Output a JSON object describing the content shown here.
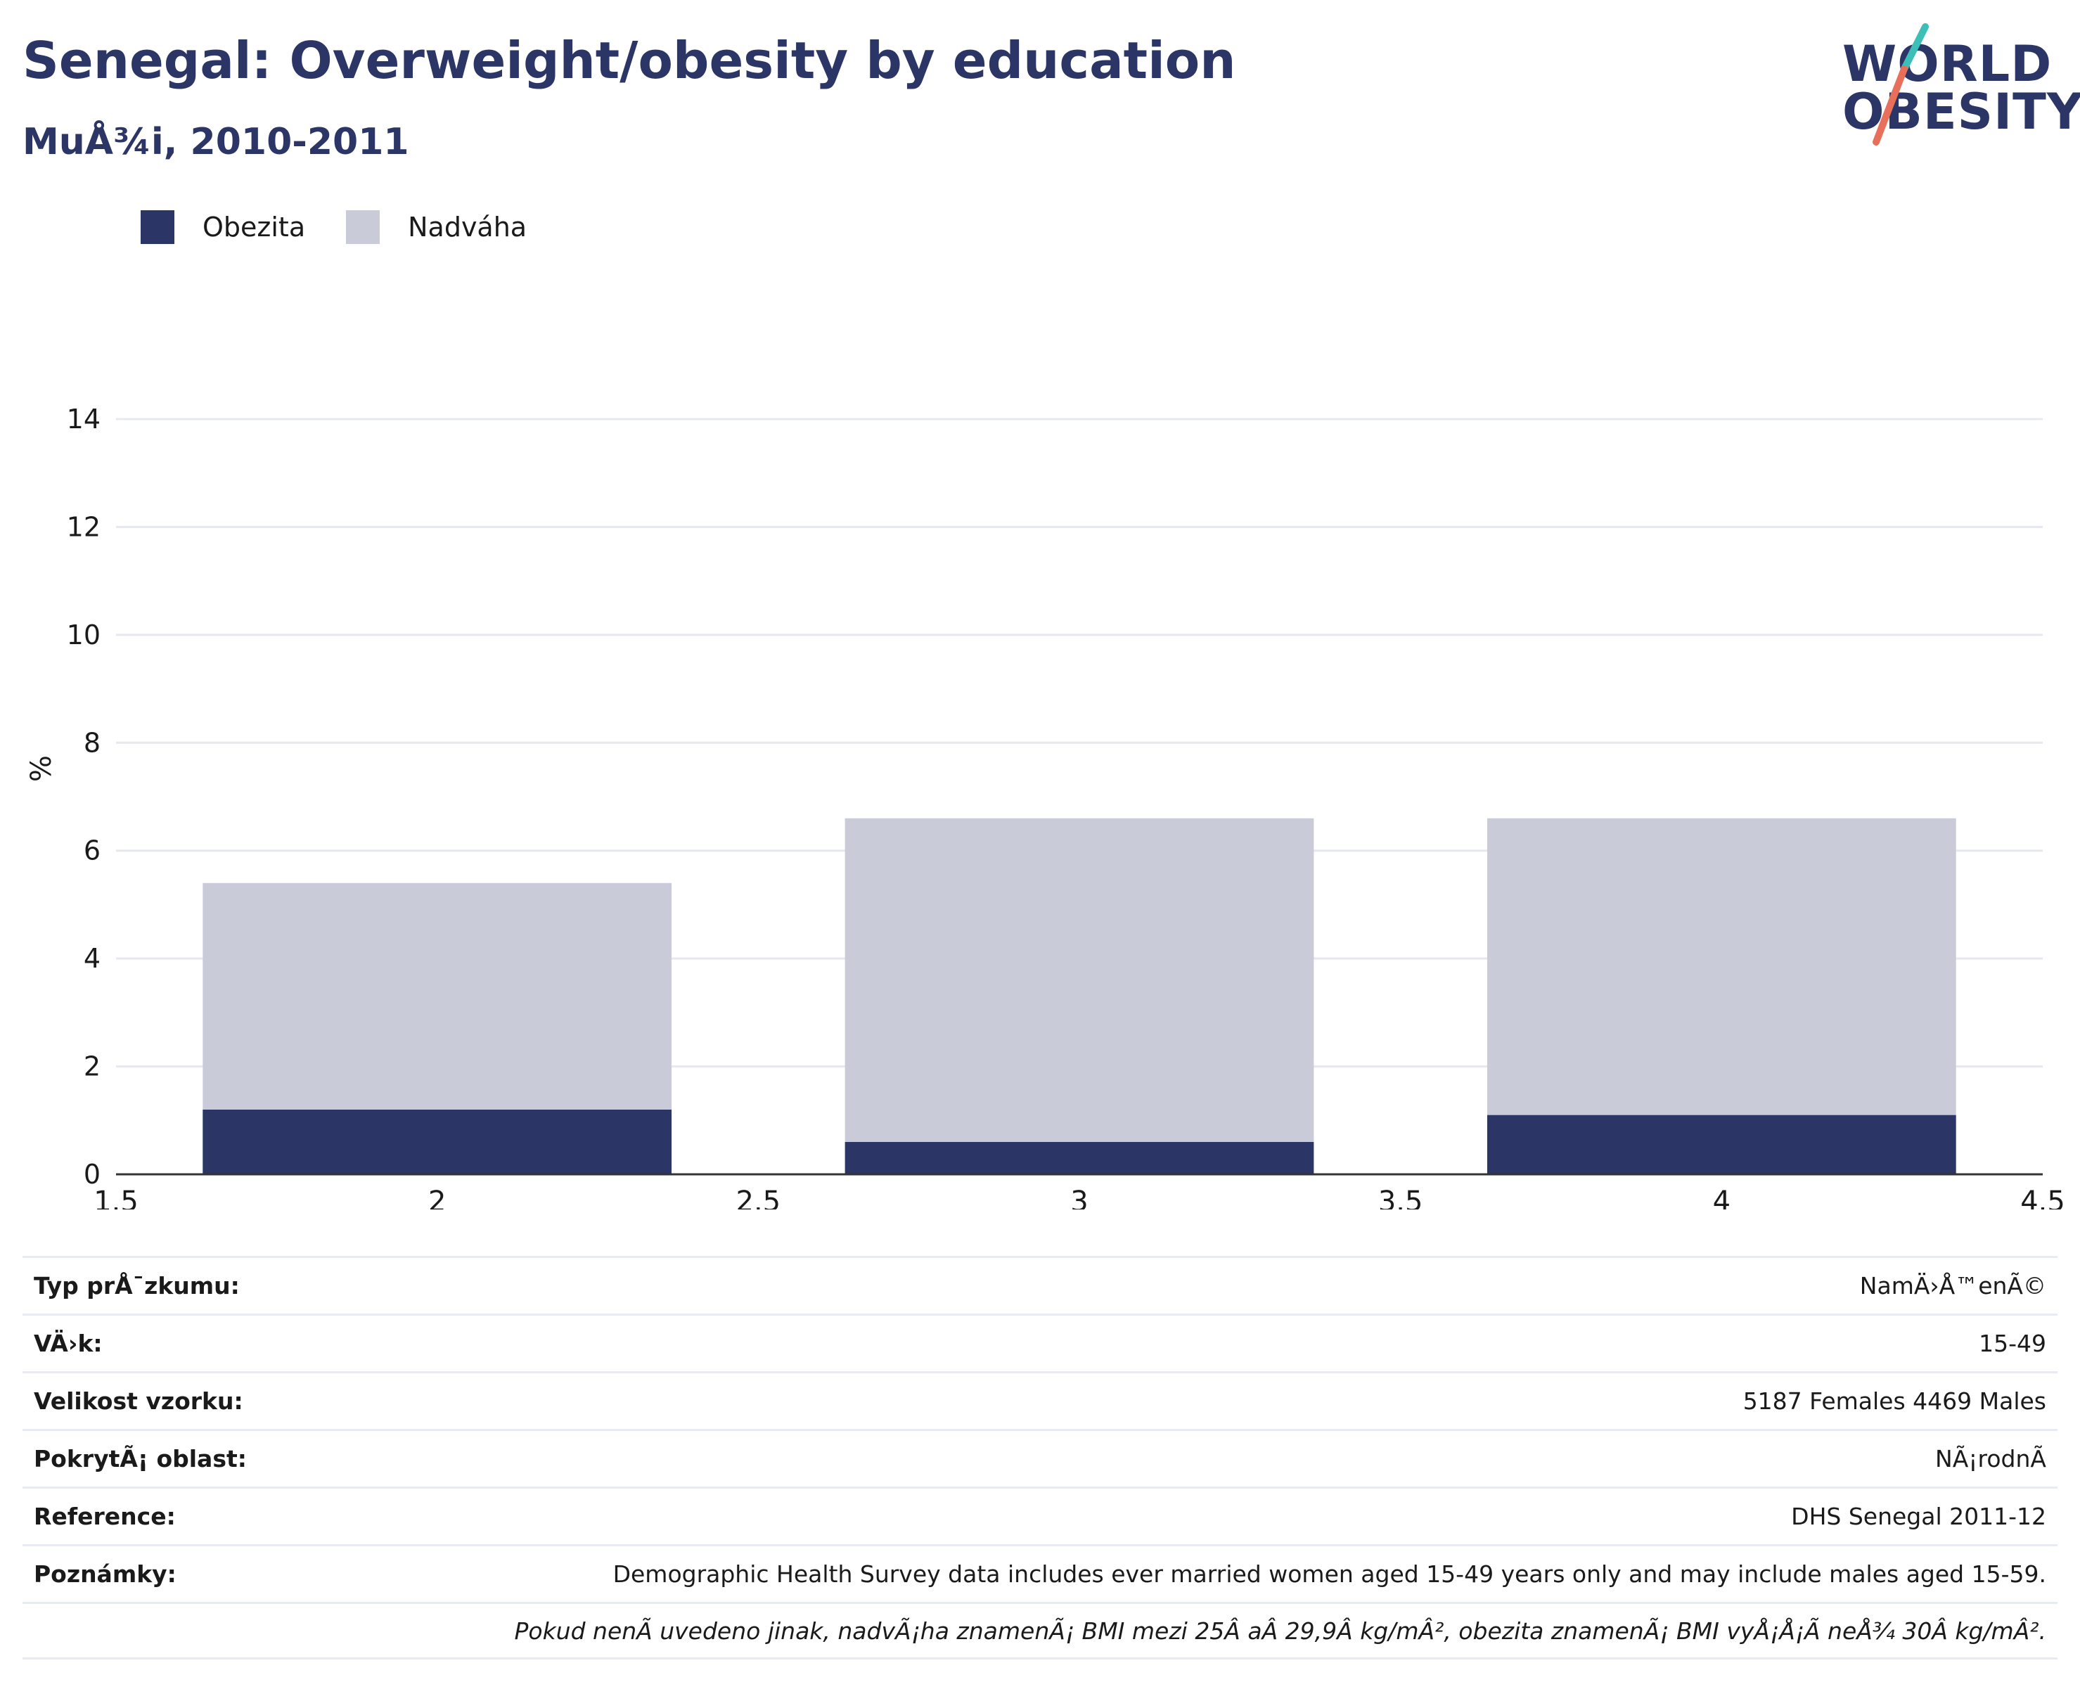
{
  "header": {
    "title": "Senegal: Overweight/obesity by education",
    "subtitle": "MuÅ¾i, 2010-2011"
  },
  "logo": {
    "line1": "WORLD",
    "line2": "OBESITY",
    "accent_colors": [
      "#3bbfb6",
      "#e8705a"
    ]
  },
  "colors": {
    "obesity": "#2b3566",
    "overweight": "#c9ccd8",
    "grid": "#e6e8ef",
    "axis": "#333333"
  },
  "chart_data": {
    "type": "bar",
    "stacked": true,
    "x": [
      2,
      3,
      4
    ],
    "series": [
      {
        "name": "Obezita",
        "values": [
          1.2,
          0.6,
          1.1
        ],
        "color": "#2b3566"
      },
      {
        "name": "Nadváha",
        "values": [
          4.2,
          6.0,
          5.5
        ],
        "color": "#c9ccd8"
      }
    ],
    "xlim": [
      1.5,
      4.5
    ],
    "ylim": [
      0,
      14
    ],
    "xticks": [
      1.5,
      2,
      2.5,
      3,
      3.5,
      4,
      4.5
    ],
    "xtick_labels": [
      "1.5",
      "2",
      "2.5",
      "3",
      "3.5",
      "4",
      "4.5"
    ],
    "yticks": [
      0,
      2,
      4,
      6,
      8,
      10,
      12,
      14
    ],
    "ytick_labels": [
      "0",
      "2",
      "4",
      "6",
      "8",
      "10",
      "12",
      "14"
    ],
    "ylabel": "%",
    "grid": true,
    "legend_position": "top-left"
  },
  "table": {
    "rows": [
      {
        "key": "Typ prÅ¯zkumu:",
        "value": "NamÄ›Å™enÃ©"
      },
      {
        "key": "VÄ›k:",
        "value": "15-49"
      },
      {
        "key": "Velikost vzorku:",
        "value": "5187 Females 4469 Males"
      },
      {
        "key": "PokrytÃ¡ oblast:",
        "value": "NÃ¡rodnÃ"
      },
      {
        "key": "Reference:",
        "value": "DHS Senegal 2011-12"
      },
      {
        "key": "Poznámky:",
        "value": "Demographic Health Survey data includes ever married women aged 15-49 years only and may include males aged 15-59."
      },
      {
        "key": "",
        "value": "Pokud nenÃ uvedeno jinak, nadvÃ¡ha znamenÃ¡ BMI mezi 25Â aÂ 29,9Â kg/mÂ², obezita znamenÃ¡ BMI vyÅ¡Å¡Ã neÅ¾ 30Â kg/mÂ²."
      }
    ]
  }
}
